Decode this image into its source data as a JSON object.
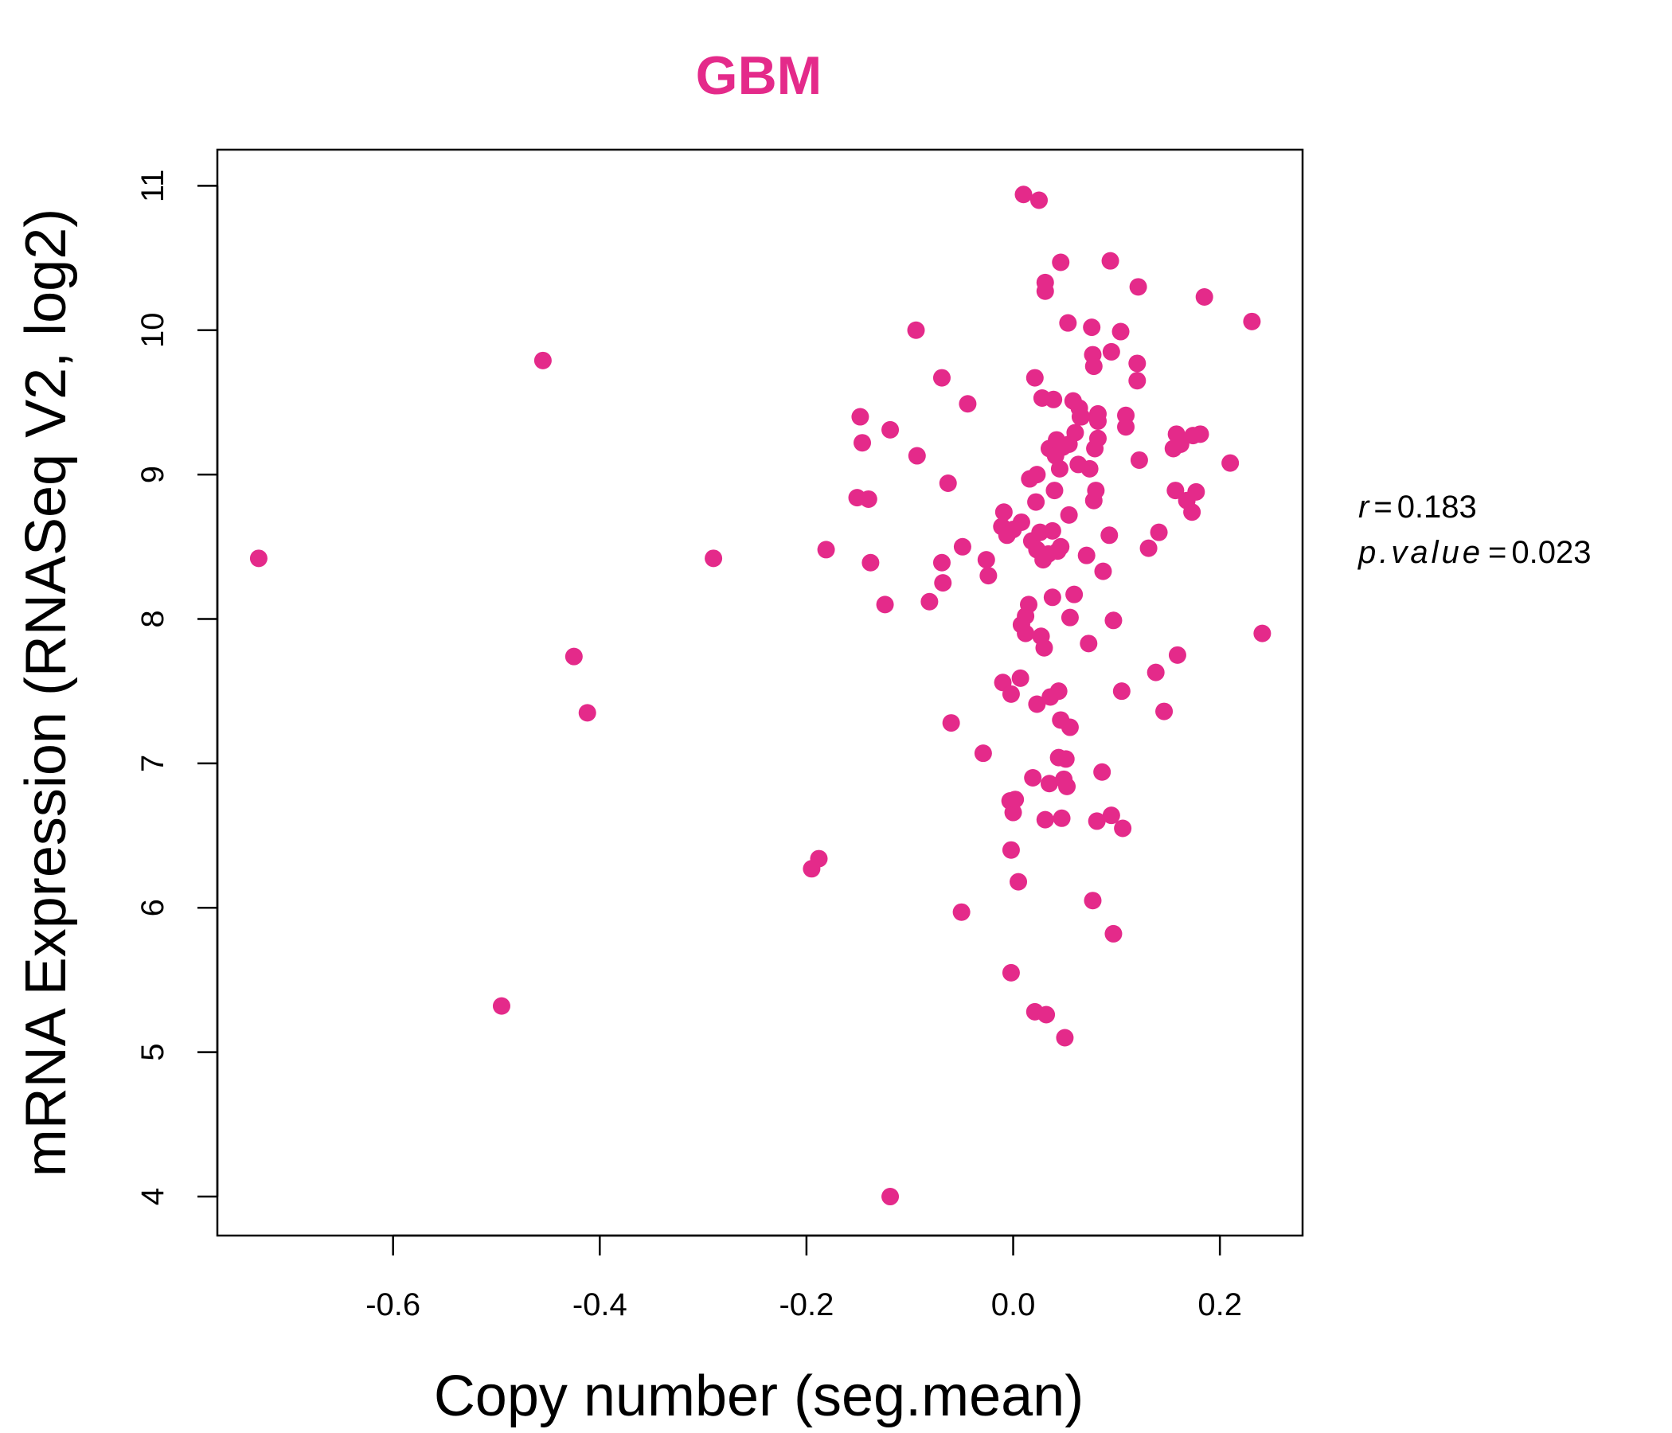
{
  "colors": {
    "point": "#e42a8a",
    "title": "#e42a8a",
    "axis": "#000000",
    "background": "#ffffff"
  },
  "stats": {
    "r_label": "r",
    "r_value": "0.183",
    "p_label": "p.value",
    "p_value": "0.023",
    "eq": "="
  },
  "chart_data": {
    "type": "scatter",
    "title": "GBM",
    "xlabel": "Copy number (seg.mean)",
    "ylabel": "mRNA Expression (RNASeq V2, log2)",
    "xlim": [
      -0.77,
      0.28
    ],
    "ylim": [
      3.73,
      11.25
    ],
    "xticks": [
      -0.6,
      -0.4,
      -0.2,
      0.0,
      0.2
    ],
    "xtick_labels": [
      "-0.6",
      "-0.4",
      "-0.2",
      "0.0",
      "0.2"
    ],
    "yticks": [
      4,
      5,
      6,
      7,
      8,
      9,
      10,
      11
    ],
    "ytick_labels": [
      "4",
      "5",
      "6",
      "7",
      "8",
      "9",
      "10",
      "11"
    ],
    "grid": false,
    "legend": "none",
    "points": [
      [
        -0.73,
        8.42
      ],
      [
        -0.455,
        9.79
      ],
      [
        -0.495,
        5.32
      ],
      [
        -0.425,
        7.74
      ],
      [
        -0.412,
        7.35
      ],
      [
        -0.29,
        8.42
      ],
      [
        -0.195,
        6.27
      ],
      [
        -0.188,
        6.34
      ],
      [
        -0.181,
        8.48
      ],
      [
        -0.151,
        8.84
      ],
      [
        -0.148,
        9.4
      ],
      [
        -0.146,
        9.22
      ],
      [
        -0.14,
        8.83
      ],
      [
        -0.138,
        8.39
      ],
      [
        -0.124,
        8.1
      ],
      [
        -0.119,
        9.31
      ],
      [
        -0.119,
        4.0
      ],
      [
        -0.094,
        10.0
      ],
      [
        -0.093,
        9.13
      ],
      [
        -0.081,
        8.12
      ],
      [
        -0.069,
        9.67
      ],
      [
        -0.069,
        8.39
      ],
      [
        -0.068,
        8.25
      ],
      [
        -0.063,
        8.94
      ],
      [
        -0.06,
        7.28
      ],
      [
        -0.05,
        5.97
      ],
      [
        -0.049,
        8.5
      ],
      [
        -0.044,
        9.49
      ],
      [
        -0.029,
        7.07
      ],
      [
        -0.026,
        8.41
      ],
      [
        -0.024,
        8.3
      ],
      [
        -0.011,
        8.64
      ],
      [
        -0.01,
        7.56
      ],
      [
        -0.009,
        8.74
      ],
      [
        -0.006,
        8.58
      ],
      [
        -0.003,
        6.74
      ],
      [
        -0.002,
        7.48
      ],
      [
        -0.002,
        6.4
      ],
      [
        -0.002,
        5.55
      ],
      [
        0.0,
        8.62
      ],
      [
        0.0,
        6.66
      ],
      [
        0.002,
        6.75
      ],
      [
        0.005,
        6.18
      ],
      [
        0.007,
        7.59
      ],
      [
        0.008,
        8.67
      ],
      [
        0.008,
        7.96
      ],
      [
        0.01,
        10.94
      ],
      [
        0.012,
        8.02
      ],
      [
        0.012,
        7.9
      ],
      [
        0.015,
        8.1
      ],
      [
        0.016,
        8.97
      ],
      [
        0.018,
        8.54
      ],
      [
        0.019,
        6.9
      ],
      [
        0.021,
        5.28
      ],
      [
        0.021,
        9.67
      ],
      [
        0.022,
        8.81
      ],
      [
        0.023,
        9.0
      ],
      [
        0.023,
        8.48
      ],
      [
        0.023,
        7.41
      ],
      [
        0.025,
        10.9
      ],
      [
        0.026,
        8.6
      ],
      [
        0.027,
        7.88
      ],
      [
        0.028,
        9.53
      ],
      [
        0.029,
        8.41
      ],
      [
        0.03,
        7.8
      ],
      [
        0.031,
        10.33
      ],
      [
        0.031,
        10.27
      ],
      [
        0.031,
        6.61
      ],
      [
        0.032,
        5.26
      ],
      [
        0.034,
        8.45
      ],
      [
        0.035,
        9.18
      ],
      [
        0.035,
        6.86
      ],
      [
        0.036,
        7.46
      ],
      [
        0.038,
        8.61
      ],
      [
        0.038,
        8.15
      ],
      [
        0.039,
        9.52
      ],
      [
        0.04,
        8.89
      ],
      [
        0.041,
        9.13
      ],
      [
        0.042,
        9.24
      ],
      [
        0.043,
        8.47
      ],
      [
        0.044,
        7.5
      ],
      [
        0.044,
        7.04
      ],
      [
        0.045,
        9.04
      ],
      [
        0.046,
        10.47
      ],
      [
        0.046,
        8.5
      ],
      [
        0.046,
        7.3
      ],
      [
        0.047,
        6.62
      ],
      [
        0.048,
        9.19
      ],
      [
        0.049,
        6.89
      ],
      [
        0.05,
        5.1
      ],
      [
        0.051,
        7.03
      ],
      [
        0.052,
        6.84
      ],
      [
        0.053,
        10.05
      ],
      [
        0.054,
        9.21
      ],
      [
        0.054,
        8.72
      ],
      [
        0.055,
        8.01
      ],
      [
        0.055,
        7.25
      ],
      [
        0.058,
        9.51
      ],
      [
        0.059,
        8.17
      ],
      [
        0.06,
        9.29
      ],
      [
        0.063,
        9.07
      ],
      [
        0.064,
        9.46
      ],
      [
        0.065,
        9.4
      ],
      [
        0.066,
        9.4
      ],
      [
        0.071,
        8.44
      ],
      [
        0.073,
        7.83
      ],
      [
        0.074,
        9.04
      ],
      [
        0.076,
        10.02
      ],
      [
        0.077,
        9.83
      ],
      [
        0.077,
        6.05
      ],
      [
        0.078,
        9.75
      ],
      [
        0.078,
        8.82
      ],
      [
        0.079,
        9.18
      ],
      [
        0.08,
        8.89
      ],
      [
        0.081,
        6.6
      ],
      [
        0.082,
        9.42
      ],
      [
        0.082,
        9.37
      ],
      [
        0.082,
        9.25
      ],
      [
        0.086,
        6.94
      ],
      [
        0.087,
        8.33
      ],
      [
        0.093,
        8.58
      ],
      [
        0.094,
        10.48
      ],
      [
        0.095,
        9.85
      ],
      [
        0.095,
        6.64
      ],
      [
        0.097,
        7.99
      ],
      [
        0.097,
        5.82
      ],
      [
        0.104,
        9.99
      ],
      [
        0.105,
        7.5
      ],
      [
        0.106,
        6.55
      ],
      [
        0.109,
        9.41
      ],
      [
        0.109,
        9.33
      ],
      [
        0.12,
        9.77
      ],
      [
        0.12,
        9.65
      ],
      [
        0.121,
        10.3
      ],
      [
        0.122,
        9.1
      ],
      [
        0.131,
        8.49
      ],
      [
        0.138,
        7.63
      ],
      [
        0.141,
        8.6
      ],
      [
        0.146,
        7.36
      ],
      [
        0.155,
        9.18
      ],
      [
        0.157,
        8.89
      ],
      [
        0.158,
        9.28
      ],
      [
        0.159,
        7.75
      ],
      [
        0.162,
        9.21
      ],
      [
        0.168,
        8.82
      ],
      [
        0.173,
        8.74
      ],
      [
        0.174,
        9.27
      ],
      [
        0.177,
        8.88
      ],
      [
        0.181,
        9.28
      ],
      [
        0.185,
        10.23
      ],
      [
        0.21,
        9.08
      ],
      [
        0.231,
        10.06
      ],
      [
        0.241,
        7.9
      ]
    ]
  }
}
